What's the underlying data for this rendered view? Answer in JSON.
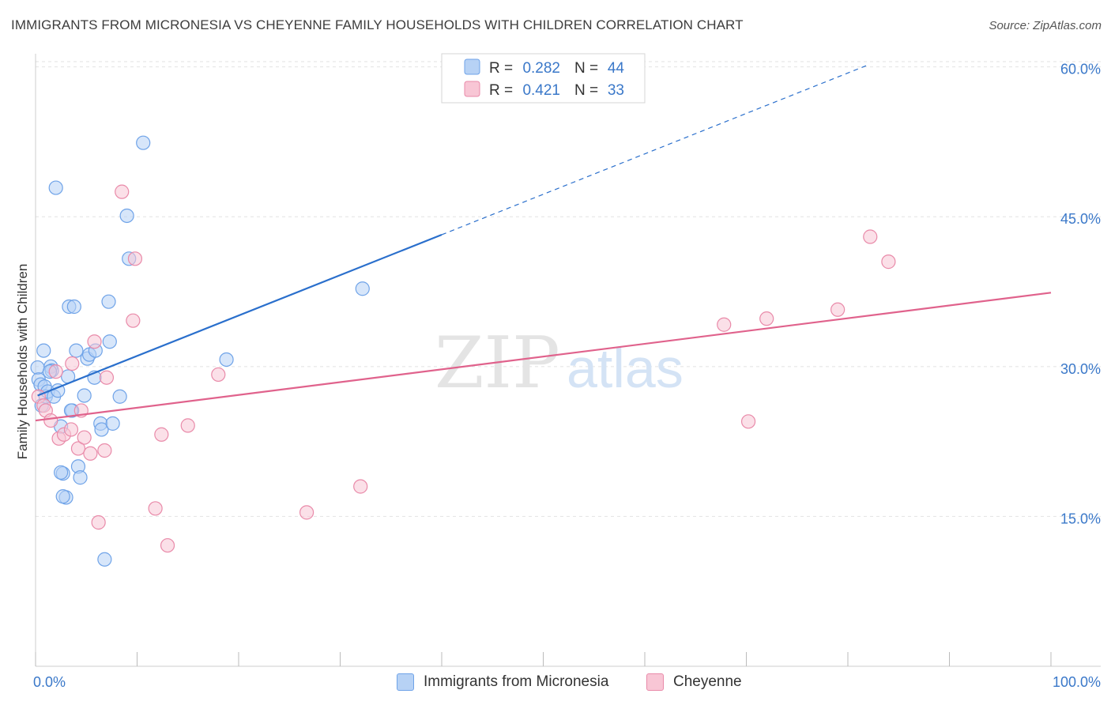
{
  "title": "IMMIGRANTS FROM MICRONESIA VS CHEYENNE FAMILY HOUSEHOLDS WITH CHILDREN CORRELATION CHART",
  "source": "Source: ZipAtlas.com",
  "colors": {
    "blue": "#6fa3e8",
    "blue_fill": "#b7d2f5",
    "blue_line": "#2a6fcc",
    "pink": "#e98aa9",
    "pink_fill": "#f8c6d5",
    "pink_line": "#e0628c",
    "axis_text": "#3a78c9"
  },
  "legend": {
    "rows": [
      {
        "r_label": "R =",
        "r_value": "0.282",
        "n_label": "N =",
        "n_value": "44"
      },
      {
        "r_label": "R =",
        "r_value": "0.421",
        "n_label": "N =",
        "n_value": "33"
      }
    ]
  },
  "bottom_legend": {
    "series1": "Immigrants from Micronesia",
    "series2": "Cheyenne"
  },
  "watermark": {
    "zip": "ZIP",
    "atlas": "atlas"
  },
  "chart_data": {
    "type": "scatter",
    "title": "IMMIGRANTS FROM MICRONESIA VS CHEYENNE FAMILY HOUSEHOLDS WITH CHILDREN CORRELATION CHART",
    "xlabel": "",
    "ylabel": "Family Households with Children",
    "xlim": [
      0,
      100
    ],
    "ylim": [
      0,
      61
    ],
    "x_tick_labels": [
      "0.0%",
      "100.0%"
    ],
    "y_ticks": [
      15,
      30,
      45,
      60
    ],
    "y_tick_labels": [
      "15.0%",
      "30.0%",
      "45.0%",
      "60.0%"
    ],
    "series": [
      {
        "name": "Immigrants from Micronesia",
        "R": 0.282,
        "N": 44,
        "trend": {
          "x0": 0.2,
          "y0": 27.1,
          "x1": 40.0,
          "y1": 43.2,
          "dashed_to_x": 82.0,
          "dashed_to_y": 60.2
        },
        "points": [
          [
            0.2,
            29.9
          ],
          [
            0.3,
            28.7
          ],
          [
            0.5,
            28.2
          ],
          [
            0.6,
            26.1
          ],
          [
            0.8,
            31.6
          ],
          [
            0.9,
            28.0
          ],
          [
            1.0,
            27.0
          ],
          [
            1.2,
            27.5
          ],
          [
            1.5,
            30.0
          ],
          [
            1.6,
            29.6
          ],
          [
            1.8,
            27.0
          ],
          [
            2.0,
            47.9
          ],
          [
            2.2,
            27.6
          ],
          [
            2.5,
            24.0
          ],
          [
            2.7,
            19.3
          ],
          [
            3.0,
            16.9
          ],
          [
            3.2,
            29.0
          ],
          [
            3.3,
            36.0
          ],
          [
            3.6,
            25.6
          ],
          [
            3.8,
            36.0
          ],
          [
            4.0,
            31.6
          ],
          [
            4.2,
            20.0
          ],
          [
            4.4,
            18.9
          ],
          [
            4.8,
            27.1
          ],
          [
            5.1,
            30.8
          ],
          [
            5.3,
            31.2
          ],
          [
            5.9,
            31.6
          ],
          [
            6.4,
            24.3
          ],
          [
            6.5,
            23.7
          ],
          [
            6.8,
            10.7
          ],
          [
            7.2,
            36.5
          ],
          [
            7.3,
            32.5
          ],
          [
            7.6,
            24.3
          ],
          [
            8.3,
            27.0
          ],
          [
            9.0,
            45.1
          ],
          [
            9.2,
            40.8
          ],
          [
            10.6,
            52.4
          ],
          [
            18.8,
            30.7
          ],
          [
            32.2,
            37.8
          ],
          [
            2.5,
            19.4
          ],
          [
            1.4,
            29.5
          ],
          [
            3.5,
            25.6
          ],
          [
            5.8,
            28.9
          ],
          [
            2.7,
            17.0
          ]
        ]
      },
      {
        "name": "Cheyenne",
        "R": 0.421,
        "N": 33,
        "trend": {
          "x0": 0.0,
          "y0": 24.6,
          "x1": 100.0,
          "y1": 37.4
        },
        "points": [
          [
            0.3,
            27.0
          ],
          [
            0.8,
            26.1
          ],
          [
            1.0,
            25.6
          ],
          [
            1.5,
            24.6
          ],
          [
            2.0,
            29.5
          ],
          [
            2.3,
            22.8
          ],
          [
            2.8,
            23.2
          ],
          [
            3.5,
            23.7
          ],
          [
            3.6,
            30.3
          ],
          [
            4.2,
            21.8
          ],
          [
            4.5,
            25.6
          ],
          [
            4.8,
            22.9
          ],
          [
            5.4,
            21.3
          ],
          [
            5.8,
            32.5
          ],
          [
            6.2,
            14.4
          ],
          [
            6.8,
            21.6
          ],
          [
            7.0,
            28.9
          ],
          [
            8.5,
            47.5
          ],
          [
            9.6,
            34.6
          ],
          [
            9.8,
            40.8
          ],
          [
            11.8,
            15.8
          ],
          [
            12.4,
            23.2
          ],
          [
            13.0,
            12.1
          ],
          [
            15.0,
            24.1
          ],
          [
            18.0,
            29.2
          ],
          [
            26.7,
            15.4
          ],
          [
            32.0,
            18.0
          ],
          [
            67.8,
            34.2
          ],
          [
            70.2,
            24.5
          ],
          [
            72.0,
            34.8
          ],
          [
            79.0,
            35.7
          ],
          [
            82.2,
            43.0
          ],
          [
            84.0,
            40.5
          ]
        ]
      }
    ]
  }
}
